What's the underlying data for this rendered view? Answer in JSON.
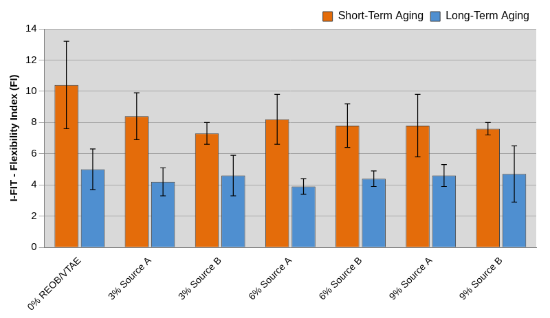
{
  "chart_data": {
    "type": "bar",
    "y_label": "I-FIT - Flexibility Index (FI)",
    "categories": [
      "0% REOB/VTAE",
      "3% Source A",
      "3% Source B",
      "6% Source A",
      "6% Source B",
      "9% Source A",
      "9% Source B"
    ],
    "series": [
      {
        "name": "Short-Term Aging",
        "color": "#e46c0a",
        "values": [
          10.4,
          8.4,
          7.3,
          8.2,
          7.8,
          7.8,
          7.6
        ],
        "errors": [
          2.8,
          1.5,
          0.7,
          1.6,
          1.4,
          2.0,
          0.4
        ]
      },
      {
        "name": "Long-Term Aging",
        "color": "#4f8fd0",
        "values": [
          5.0,
          4.2,
          4.6,
          3.9,
          4.4,
          4.6,
          4.7
        ],
        "errors": [
          1.3,
          0.9,
          1.3,
          0.5,
          0.5,
          0.7,
          1.8
        ]
      }
    ],
    "ylim": [
      0,
      14
    ],
    "yticks": [
      0,
      2,
      4,
      6,
      8,
      10,
      12,
      14
    ],
    "grid": true,
    "legend": "top"
  }
}
